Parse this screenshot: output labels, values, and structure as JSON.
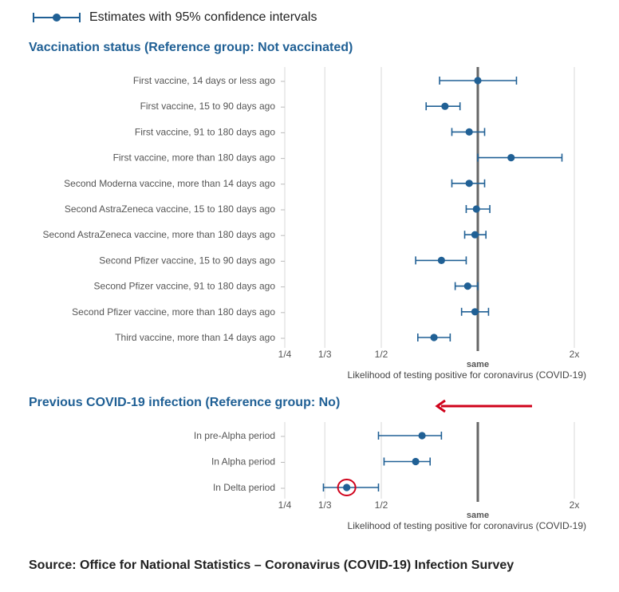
{
  "legend": {
    "label": "Estimates with 95% confidence intervals"
  },
  "colors": {
    "series": "#206095",
    "reference_line": "#666666",
    "title": "#206095",
    "annotation": "#d0021b",
    "grid": "#d9d9d9"
  },
  "chart_data": [
    {
      "type": "scatter",
      "title": "Vaccination status (Reference group: Not vaccinated)",
      "xlabel": "Likelihood of testing positive for coronavirus (COVID-19)",
      "x_scale": "log2",
      "xlim": [
        0.25,
        2
      ],
      "xticks": [
        {
          "value": 0.25,
          "label": "1/4"
        },
        {
          "value": 0.3333,
          "label": "1/3"
        },
        {
          "value": 0.5,
          "label": "1/2"
        },
        {
          "value": 1,
          "label": "same"
        },
        {
          "value": 2,
          "label": "2x"
        }
      ],
      "reference_value": 1,
      "rows": [
        {
          "label": "First vaccine, 14 days or less ago",
          "estimate": 1.0,
          "lower": 0.76,
          "upper": 1.32
        },
        {
          "label": "First vaccine, 15 to 90 days ago",
          "estimate": 0.79,
          "lower": 0.69,
          "upper": 0.88
        },
        {
          "label": "First vaccine, 91 to 180 days ago",
          "estimate": 0.94,
          "lower": 0.83,
          "upper": 1.05
        },
        {
          "label": "First vaccine, more than 180 days ago",
          "estimate": 1.27,
          "lower": 1.0,
          "upper": 1.83
        },
        {
          "label": "Second Moderna vaccine, more than 14 days ago",
          "estimate": 0.94,
          "lower": 0.83,
          "upper": 1.05
        },
        {
          "label": "Second AstraZeneca vaccine, 15 to 180 days ago",
          "estimate": 0.99,
          "lower": 0.92,
          "upper": 1.09
        },
        {
          "label": "Second AstraZeneca vaccine, more than 180 days ago",
          "estimate": 0.98,
          "lower": 0.91,
          "upper": 1.06
        },
        {
          "label": "Second Pfizer vaccine, 15 to 90 days ago",
          "estimate": 0.77,
          "lower": 0.64,
          "upper": 0.92
        },
        {
          "label": "Second Pfizer vaccine, 91 to 180 days ago",
          "estimate": 0.93,
          "lower": 0.85,
          "upper": 1.0
        },
        {
          "label": "Second Pfizer vaccine, more than 180 days ago",
          "estimate": 0.98,
          "lower": 0.89,
          "upper": 1.08
        },
        {
          "label": "Third vaccine, more than 14 days ago",
          "estimate": 0.73,
          "lower": 0.65,
          "upper": 0.82
        }
      ]
    },
    {
      "type": "scatter",
      "title": "Previous COVID-19 infection (Reference group: No)",
      "xlabel": "Likelihood of testing positive for coronavirus (COVID-19)",
      "x_scale": "log2",
      "xlim": [
        0.25,
        2
      ],
      "xticks": [
        {
          "value": 0.25,
          "label": "1/4"
        },
        {
          "value": 0.3333,
          "label": "1/3"
        },
        {
          "value": 0.5,
          "label": "1/2"
        },
        {
          "value": 1,
          "label": "same"
        },
        {
          "value": 2,
          "label": "2x"
        }
      ],
      "reference_value": 1,
      "rows": [
        {
          "label": "In pre-Alpha period",
          "estimate": 0.67,
          "lower": 0.49,
          "upper": 0.77
        },
        {
          "label": "In Alpha period",
          "estimate": 0.64,
          "lower": 0.51,
          "upper": 0.71
        },
        {
          "label": "In Delta period",
          "estimate": 0.39,
          "lower": 0.33,
          "upper": 0.49
        }
      ]
    }
  ],
  "annotations": {
    "arrow": "red-arrow-icon",
    "circle": "red-circle-icon"
  },
  "source": "Source: Office for National Statistics – Coronavirus (COVID-19) Infection Survey"
}
